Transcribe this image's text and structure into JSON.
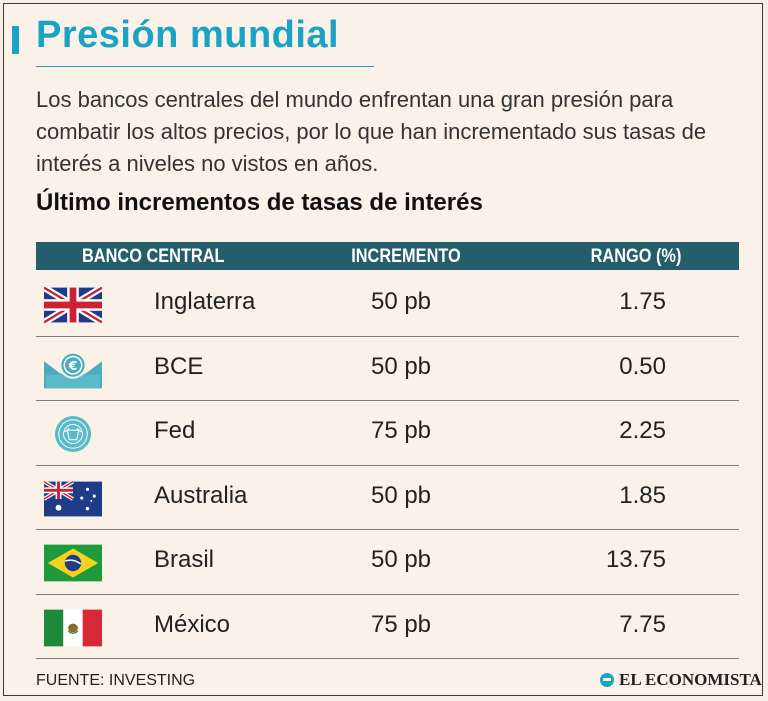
{
  "title": "Presión mundial",
  "intro": "Los bancos centrales del mundo enfrentan una gran presión para combatir los altos precios, por lo que han incrementado sus tasas de interés a niveles no vistos en años.",
  "subtitle": "Último incrementos de tasas de interés",
  "table": {
    "headers": {
      "bank": "BANCO CENTRAL",
      "increase": "INCREMENTO",
      "range": "RANGO (%)"
    },
    "rows": [
      {
        "icon": "uk-flag-icon",
        "bank": "Inglaterra",
        "increase": "50 pb",
        "range": "1.75"
      },
      {
        "icon": "ecb-euro-icon",
        "bank": "BCE",
        "increase": "50 pb",
        "range": "0.50"
      },
      {
        "icon": "fed-seal-icon",
        "bank": "Fed",
        "increase": "75 pb",
        "range": "2.25"
      },
      {
        "icon": "australia-flag-icon",
        "bank": "Australia",
        "increase": "50 pb",
        "range": "1.85"
      },
      {
        "icon": "brazil-flag-icon",
        "bank": "Brasil",
        "increase": "50 pb",
        "range": "13.75"
      },
      {
        "icon": "mexico-flag-icon",
        "bank": "México",
        "increase": "75 pb",
        "range": "7.75"
      }
    ]
  },
  "source": "FUENTE:  INVESTING",
  "logo": "EL ECONOMISTA",
  "colors": {
    "accent": "#1aa3c4",
    "header_bg": "#245e6b",
    "background": "#faf2e8"
  }
}
